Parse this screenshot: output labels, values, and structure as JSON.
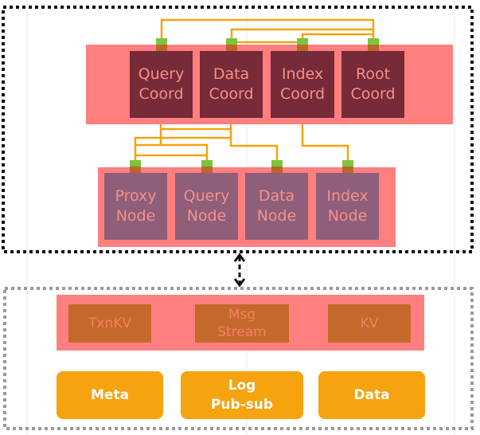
{
  "colors": {
    "band": "#ff7f7f",
    "coord": "#772a37",
    "node": "#8f5e7b",
    "storage": "#c4692b",
    "dependency": "#f5a30f",
    "port_top": "#7cc43c",
    "link": "#f5a30f"
  },
  "coordinators": [
    {
      "label": "Query\nCoord"
    },
    {
      "label": "Data\nCoord"
    },
    {
      "label": "Index\nCoord"
    },
    {
      "label": "Root\nCoord"
    }
  ],
  "nodes": [
    {
      "label": "Proxy\nNode"
    },
    {
      "label": "Query\nNode"
    },
    {
      "label": "Data\nNode"
    },
    {
      "label": "Index\nNode"
    }
  ],
  "storage": [
    {
      "label": "TxnKV"
    },
    {
      "label": "Msg\nStream"
    },
    {
      "label": "KV"
    }
  ],
  "dependencies": [
    {
      "label": "Meta"
    },
    {
      "label": "Log\nPub-sub"
    },
    {
      "label": "Data"
    }
  ]
}
